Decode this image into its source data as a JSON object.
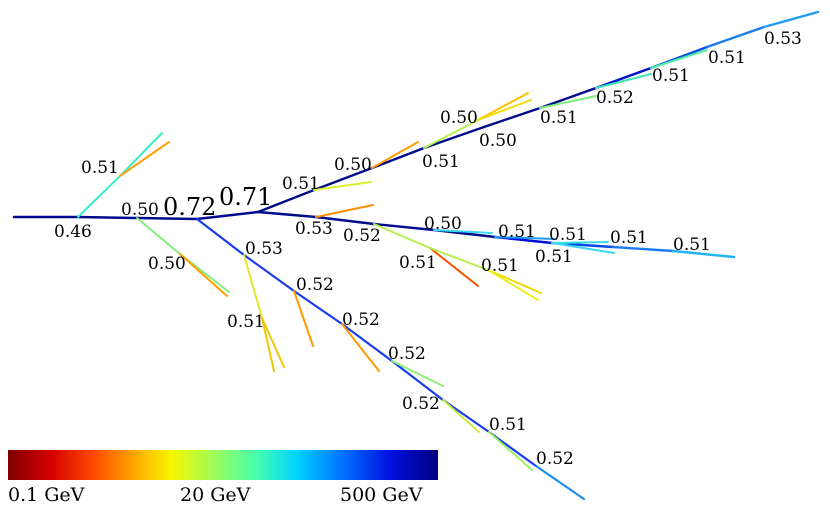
{
  "colorbar": {
    "labels": [
      {
        "id": "low",
        "text": "0.1 GeV"
      },
      {
        "id": "mid",
        "text": "20 GeV"
      },
      {
        "id": "high",
        "text": "500 GeV"
      }
    ],
    "stops": [
      "#7f0000",
      "#d40000",
      "#ff4a00",
      "#ffad00",
      "#f7f700",
      "#9dfc5a",
      "#45ffb0",
      "#00d4ff",
      "#0070ff",
      "#0010e0",
      "#000080"
    ]
  },
  "node_labels": [
    {
      "id": "n0",
      "text": "0.46"
    },
    {
      "id": "n1",
      "text": "0.51"
    },
    {
      "id": "n2",
      "text": "0.50"
    },
    {
      "id": "n3",
      "text": "0.72"
    },
    {
      "id": "n4",
      "text": "0.71"
    },
    {
      "id": "n5",
      "text": "0.50"
    },
    {
      "id": "n6",
      "text": "0.53"
    },
    {
      "id": "n7",
      "text": "0.51"
    },
    {
      "id": "n8",
      "text": "0.52"
    },
    {
      "id": "n9",
      "text": "0.52"
    },
    {
      "id": "n10",
      "text": "0.52"
    },
    {
      "id": "n11",
      "text": "0.52"
    },
    {
      "id": "n12",
      "text": "0.51"
    },
    {
      "id": "n13",
      "text": "0.52"
    },
    {
      "id": "n14",
      "text": "0.51"
    },
    {
      "id": "n15",
      "text": "0.53"
    },
    {
      "id": "n16",
      "text": "0.52"
    },
    {
      "id": "n17",
      "text": "0.50"
    },
    {
      "id": "n18",
      "text": "0.51"
    },
    {
      "id": "n19",
      "text": "0.51"
    },
    {
      "id": "n20",
      "text": "0.51"
    },
    {
      "id": "n21",
      "text": "0.51"
    },
    {
      "id": "n22",
      "text": "0.51"
    },
    {
      "id": "n23",
      "text": "0.51"
    },
    {
      "id": "n24",
      "text": "0.51"
    },
    {
      "id": "n25",
      "text": "0.50"
    },
    {
      "id": "n26",
      "text": "0.51"
    },
    {
      "id": "n27",
      "text": "0.50"
    },
    {
      "id": "n28",
      "text": "0.50"
    },
    {
      "id": "n29",
      "text": "0.51"
    },
    {
      "id": "n30",
      "text": "0.52"
    },
    {
      "id": "n31",
      "text": "0.51"
    },
    {
      "id": "n32",
      "text": "0.51"
    },
    {
      "id": "n33",
      "text": "0.53"
    }
  ]
}
